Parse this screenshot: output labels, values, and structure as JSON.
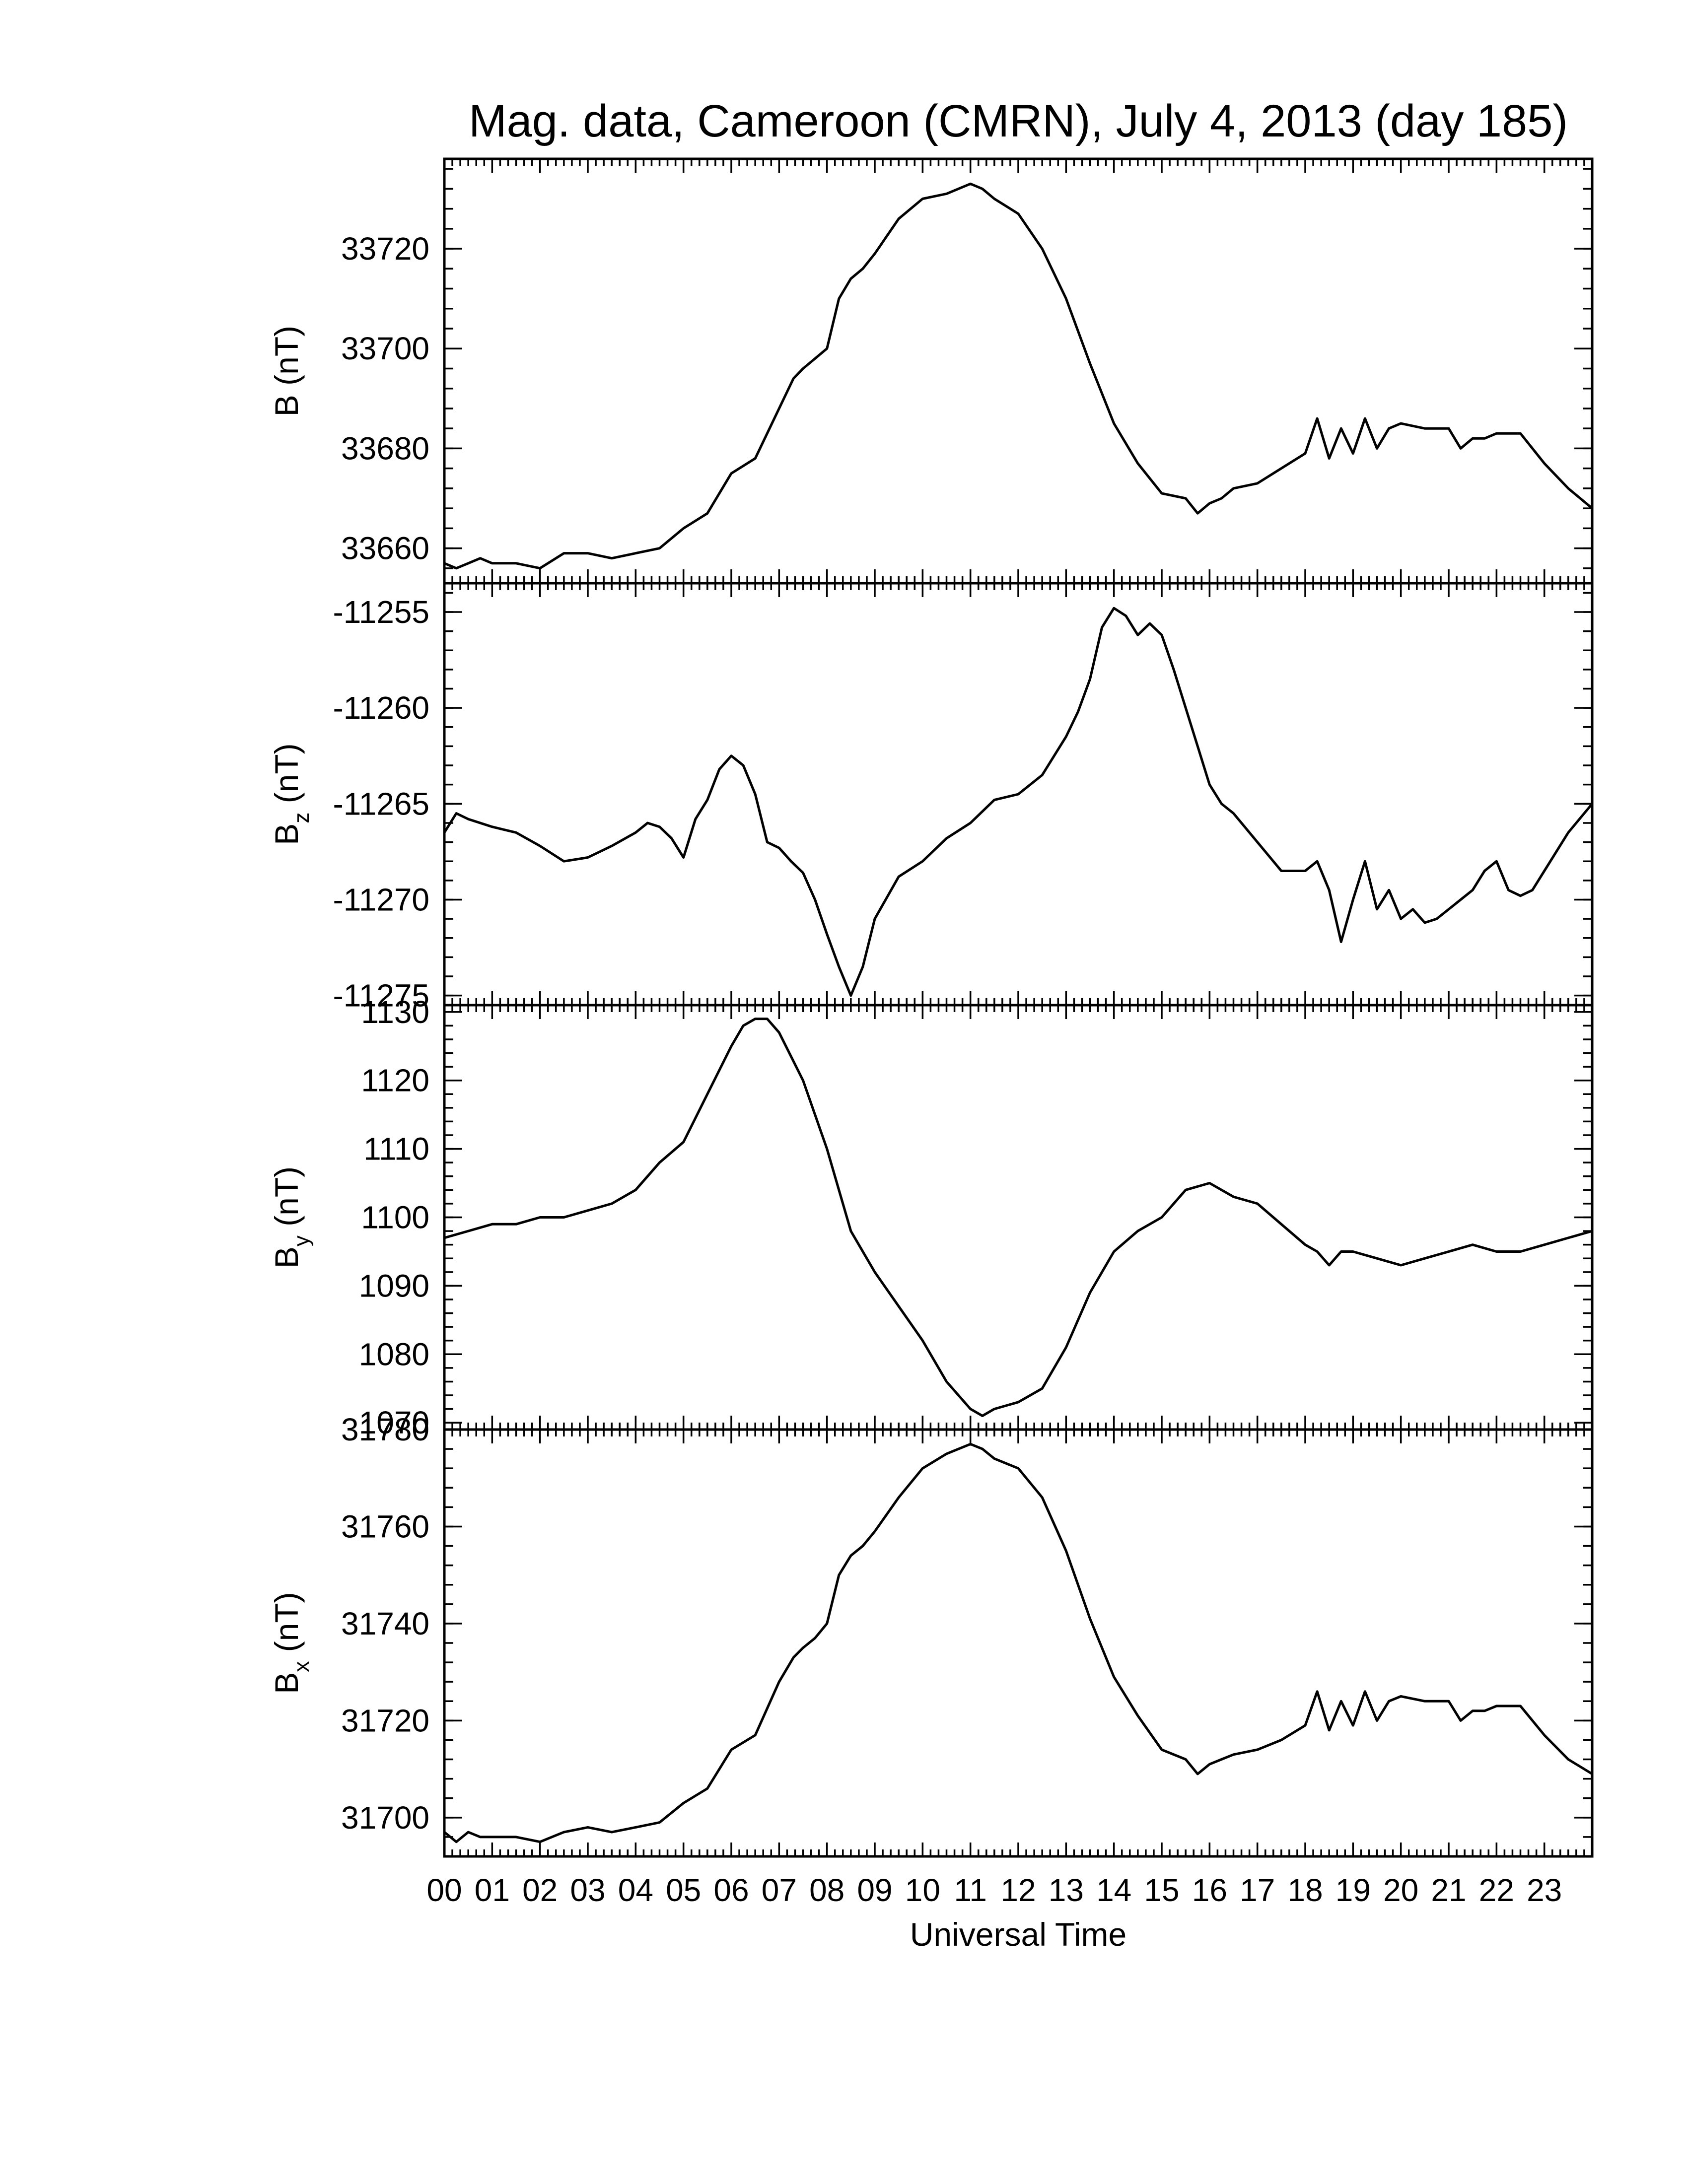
{
  "chart_data": {
    "type": "line",
    "title": "Mag. data, Cameroon (CMRN), July 4, 2013 (day 185)",
    "xlabel": "Universal Time",
    "xlim": [
      0,
      24
    ],
    "x_tick_labels": [
      "00",
      "01",
      "02",
      "03",
      "04",
      "05",
      "06",
      "07",
      "08",
      "09",
      "10",
      "11",
      "12",
      "13",
      "14",
      "15",
      "16",
      "17",
      "18",
      "19",
      "20",
      "21",
      "22",
      "23"
    ],
    "x_tick_values": [
      0,
      1,
      2,
      3,
      4,
      5,
      6,
      7,
      8,
      9,
      10,
      11,
      12,
      13,
      14,
      15,
      16,
      17,
      18,
      19,
      20,
      21,
      22,
      23
    ],
    "panels": [
      {
        "ylabel": "B (nT)",
        "ylabel_main": "B",
        "ylabel_sub": "",
        "ylabel_unit": " (nT)",
        "ylim": [
          33653,
          33738
        ],
        "yticks": [
          33660,
          33680,
          33700,
          33720
        ],
        "ytick_labels": [
          "33660",
          "33680",
          "33700",
          "33720"
        ],
        "x": [
          0,
          0.25,
          0.5,
          0.75,
          1,
          1.5,
          2,
          2.5,
          3,
          3.5,
          4,
          4.5,
          5,
          5.5,
          6,
          6.5,
          7,
          7.3,
          7.5,
          7.75,
          8,
          8.25,
          8.5,
          8.75,
          9,
          9.5,
          10,
          10.5,
          11,
          11.25,
          11.5,
          12,
          12.5,
          13,
          13.5,
          14,
          14.5,
          15,
          15.5,
          15.75,
          16,
          16.25,
          16.5,
          17,
          17.5,
          18,
          18.25,
          18.5,
          18.75,
          19,
          19.25,
          19.5,
          19.75,
          20,
          20.5,
          21,
          21.25,
          21.5,
          21.75,
          22,
          22.5,
          23,
          23.5,
          24
        ],
        "y": [
          33657,
          33656,
          33657,
          33658,
          33657,
          33657,
          33656,
          33659,
          33659,
          33658,
          33659,
          33660,
          33664,
          33667,
          33675,
          33678,
          33688,
          33694,
          33696,
          33698,
          33700,
          33710,
          33714,
          33716,
          33719,
          33726,
          33730,
          33731,
          33733,
          33732,
          33730,
          33727,
          33720,
          33710,
          33697,
          33685,
          33677,
          33671,
          33670,
          33667,
          33669,
          33670,
          33672,
          33673,
          33676,
          33679,
          33686,
          33678,
          33684,
          33679,
          33686,
          33680,
          33684,
          33685,
          33684,
          33684,
          33680,
          33682,
          33682,
          33683,
          33683,
          33677,
          33672,
          33668
        ]
      },
      {
        "ylabel": "Bz (nT)",
        "ylabel_main": "B",
        "ylabel_sub": "z",
        "ylabel_unit": " (nT)",
        "ylim": [
          -11275.5,
          -11253.5
        ],
        "yticks": [
          -11275,
          -11270,
          -11265,
          -11260,
          -11255
        ],
        "ytick_labels": [
          "-11275",
          "-11270",
          "-11265",
          "-11260",
          "-11255"
        ],
        "x": [
          0,
          0.25,
          0.5,
          1,
          1.5,
          2,
          2.5,
          3,
          3.5,
          4,
          4.25,
          4.5,
          4.75,
          5,
          5.25,
          5.5,
          5.75,
          6,
          6.25,
          6.5,
          6.75,
          7,
          7.25,
          7.5,
          7.75,
          8,
          8.25,
          8.5,
          8.75,
          9,
          9.5,
          10,
          10.5,
          11,
          11.5,
          12,
          12.5,
          13,
          13.25,
          13.5,
          13.75,
          14,
          14.25,
          14.5,
          14.75,
          15,
          15.25,
          15.5,
          15.75,
          16,
          16.25,
          16.5,
          17,
          17.5,
          18,
          18.25,
          18.5,
          18.75,
          19,
          19.25,
          19.5,
          19.75,
          20,
          20.25,
          20.5,
          20.75,
          21,
          21.25,
          21.5,
          21.75,
          22,
          22.25,
          22.5,
          22.75,
          23,
          23.5,
          24
        ],
        "y": [
          -11266.5,
          -11265.5,
          -11265.8,
          -11266.2,
          -11266.5,
          -11267.2,
          -11268.0,
          -11267.8,
          -11267.2,
          -11266.5,
          -11266.0,
          -11266.2,
          -11266.8,
          -11267.8,
          -11265.8,
          -11264.8,
          -11263.2,
          -11262.5,
          -11263.0,
          -11264.5,
          -11267.0,
          -11267.3,
          -11268.0,
          -11268.6,
          -11270.0,
          -11271.8,
          -11273.5,
          -11275.0,
          -11273.5,
          -11271.0,
          -11268.8,
          -11268.0,
          -11266.8,
          -11266.0,
          -11264.8,
          -11264.5,
          -11263.5,
          -11261.5,
          -11260.2,
          -11258.5,
          -11255.8,
          -11254.8,
          -11255.2,
          -11256.2,
          -11255.6,
          -11256.2,
          -11258.0,
          -11260.0,
          -11262.0,
          -11264.0,
          -11265.0,
          -11265.5,
          -11267.0,
          -11268.5,
          -11268.5,
          -11268.0,
          -11269.5,
          -11272.2,
          -11270.0,
          -11268.0,
          -11270.5,
          -11269.5,
          -11271.0,
          -11270.5,
          -11271.2,
          -11271.0,
          -11270.5,
          -11270.0,
          -11269.5,
          -11268.5,
          -11268.0,
          -11269.5,
          -11269.8,
          -11269.5,
          -11268.5,
          -11266.5,
          -11265.0
        ]
      },
      {
        "ylabel": "By (nT)",
        "ylabel_main": "B",
        "ylabel_sub": "y",
        "ylabel_unit": " (nT)",
        "ylim": [
          1069,
          1131
        ],
        "yticks": [
          1070,
          1080,
          1090,
          1100,
          1110,
          1120,
          1130
        ],
        "ytick_labels": [
          "1070",
          "1080",
          "1090",
          "1100",
          "1110",
          "1120",
          "1130"
        ],
        "x": [
          0,
          0.5,
          1,
          1.5,
          2,
          2.5,
          3,
          3.5,
          4,
          4.5,
          5,
          5.5,
          6,
          6.25,
          6.5,
          6.75,
          7,
          7.5,
          8,
          8.5,
          9,
          9.5,
          10,
          10.5,
          11,
          11.25,
          11.5,
          12,
          12.5,
          13,
          13.5,
          14,
          14.5,
          15,
          15.5,
          16,
          16.5,
          17,
          17.5,
          18,
          18.25,
          18.5,
          18.75,
          19,
          19.5,
          20,
          20.5,
          21,
          21.5,
          22,
          22.5,
          23,
          23.5,
          24
        ],
        "y": [
          1097,
          1098,
          1099,
          1099,
          1100,
          1100,
          1101,
          1102,
          1104,
          1108,
          1111,
          1118,
          1125,
          1128,
          1129,
          1129,
          1127,
          1120,
          1110,
          1098,
          1092,
          1087,
          1082,
          1076,
          1072,
          1071,
          1072,
          1073,
          1075,
          1081,
          1089,
          1095,
          1098,
          1100,
          1104,
          1105,
          1103,
          1102,
          1099,
          1096,
          1095,
          1093,
          1095,
          1095,
          1094,
          1093,
          1094,
          1095,
          1096,
          1095,
          1095,
          1096,
          1097,
          1098
        ]
      },
      {
        "ylabel": "Bx (nT)",
        "ylabel_main": "B",
        "ylabel_sub": "x",
        "ylabel_unit": " (nT)",
        "ylim": [
          31692,
          31780
        ],
        "yticks": [
          31700,
          31720,
          31740,
          31760,
          31780
        ],
        "ytick_labels": [
          "31700",
          "31720",
          "31740",
          "31760",
          "31780"
        ],
        "x": [
          0,
          0.25,
          0.5,
          0.75,
          1,
          1.5,
          2,
          2.5,
          3,
          3.5,
          4,
          4.5,
          5,
          5.5,
          6,
          6.5,
          7,
          7.3,
          7.5,
          7.75,
          8,
          8.25,
          8.5,
          8.75,
          9,
          9.5,
          10,
          10.5,
          11,
          11.25,
          11.5,
          12,
          12.5,
          13,
          13.5,
          14,
          14.5,
          15,
          15.5,
          15.75,
          16,
          16.25,
          16.5,
          17,
          17.5,
          18,
          18.25,
          18.5,
          18.75,
          19,
          19.25,
          19.5,
          19.75,
          20,
          20.5,
          21,
          21.25,
          21.5,
          21.75,
          22,
          22.5,
          23,
          23.5,
          24
        ],
        "y": [
          31697,
          31695,
          31697,
          31696,
          31696,
          31696,
          31695,
          31697,
          31698,
          31697,
          31698,
          31699,
          31703,
          31706,
          31714,
          31717,
          31728,
          31733,
          31735,
          31737,
          31740,
          31750,
          31754,
          31756,
          31759,
          31766,
          31772,
          31775,
          31777,
          31776,
          31774,
          31772,
          31766,
          31755,
          31741,
          31729,
          31721,
          31714,
          31712,
          31709,
          31711,
          31712,
          31713,
          31714,
          31716,
          31719,
          31726,
          31718,
          31724,
          31719,
          31726,
          31720,
          31724,
          31725,
          31724,
          31724,
          31720,
          31722,
          31722,
          31723,
          31723,
          31717,
          31712,
          31709
        ]
      }
    ]
  }
}
